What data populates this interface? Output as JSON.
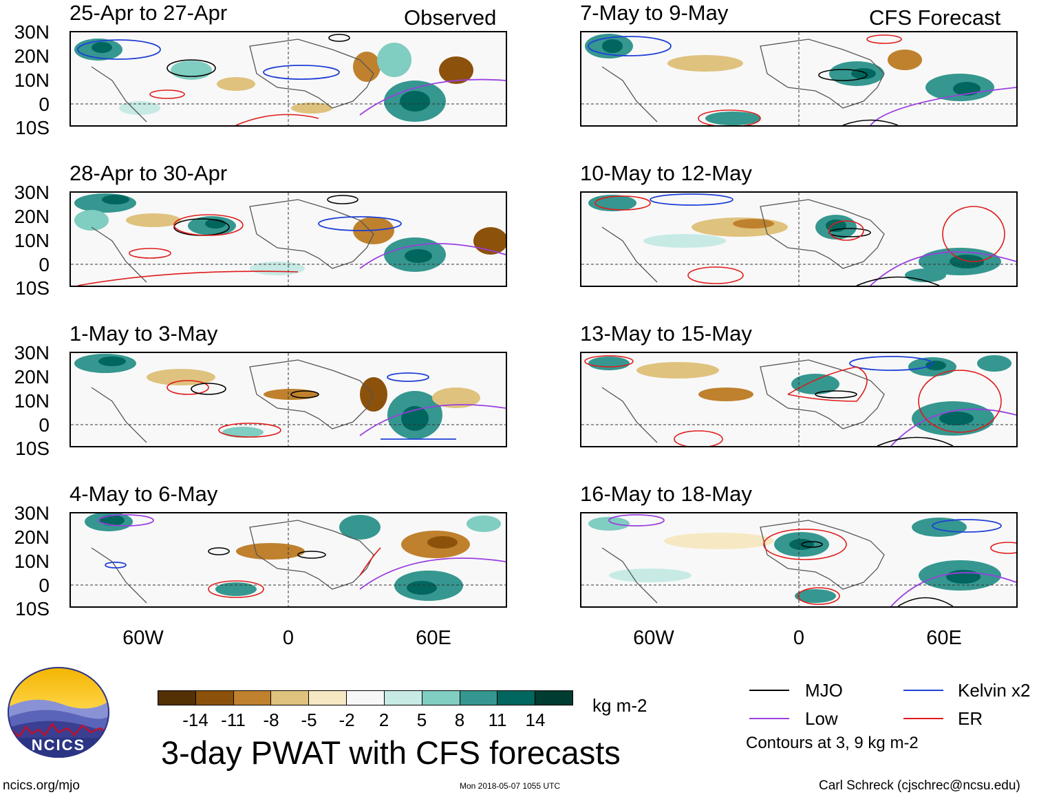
{
  "header": {
    "observed_label": "Observed",
    "forecast_label": "CFS Forecast"
  },
  "lat_labels": [
    "30N",
    "20N",
    "10N",
    "0",
    "10S"
  ],
  "lon_labels": [
    "60W",
    "0",
    "60E"
  ],
  "panels_observed": [
    {
      "title": "25-Apr to 27-Apr"
    },
    {
      "title": "28-Apr to 30-Apr"
    },
    {
      "title": "1-May to 3-May"
    },
    {
      "title": "4-May to 6-May"
    }
  ],
  "panels_forecast": [
    {
      "title": "7-May to 9-May"
    },
    {
      "title": "10-May to 12-May"
    },
    {
      "title": "13-May to 15-May"
    },
    {
      "title": "16-May to 18-May"
    }
  ],
  "colorbar": {
    "ticks": [
      "-14",
      "-11",
      "-8",
      "-5",
      "-2",
      "2",
      "5",
      "8",
      "11",
      "14"
    ],
    "colors": [
      "#543005",
      "#8c510a",
      "#bf812d",
      "#dfc27d",
      "#f6e8c3",
      "#f7f7f7",
      "#c7eae5",
      "#80cdc1",
      "#35978f",
      "#01665e",
      "#003c30"
    ],
    "units": "kg m-2"
  },
  "legend": {
    "items": [
      {
        "label": "MJO",
        "color": "#000000"
      },
      {
        "label": "Kelvin x2",
        "color": "#1f3fd6"
      },
      {
        "label": "Low",
        "color": "#9a3fe0"
      },
      {
        "label": "ER",
        "color": "#e01a1a"
      }
    ],
    "note": "Contours at 3, 9 kg m-2"
  },
  "logo": {
    "text": "NCICS"
  },
  "title": "3-day PWAT with CFS forecasts",
  "footer": {
    "left": "ncics.org/mjo",
    "center": "Mon 2018-05-07 1055 UTC",
    "right": "Carl Schreck (cjschrec@ncsu.edu)"
  }
}
